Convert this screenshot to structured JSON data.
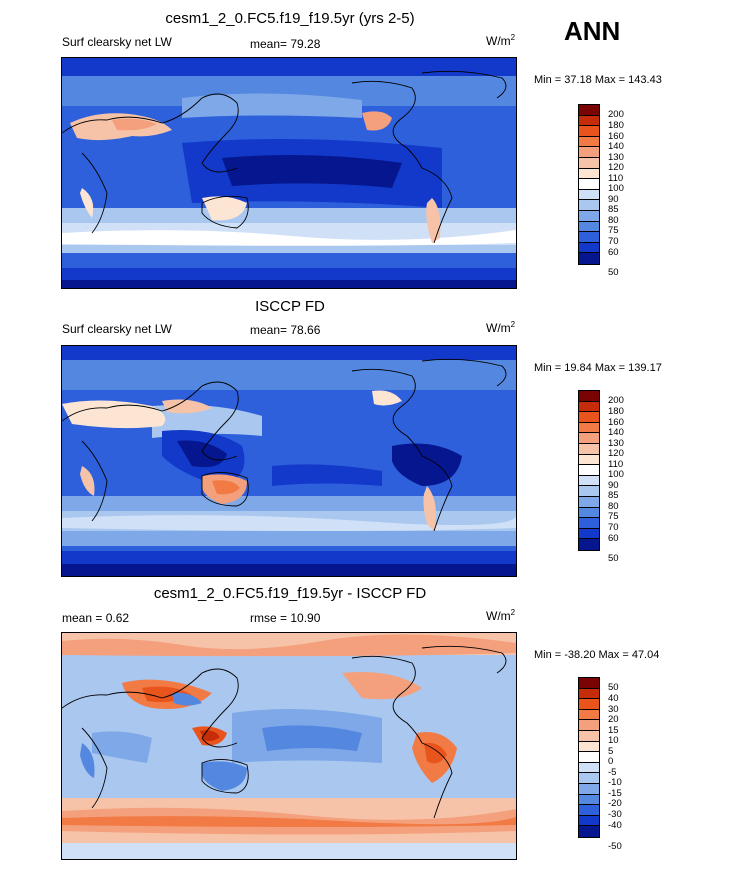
{
  "season": "ANN",
  "panels": [
    {
      "title": "cesm1_2_0.FC5.f19_f19.5yr (yrs 2-5)",
      "left_label": "Surf clearsky net LW",
      "center_label": "mean=  79.28",
      "units_base": "W/m",
      "units_exp": "2",
      "minmax": "Min =  37.18 Max = 143.43",
      "levels": [
        "200",
        "180",
        "160",
        "140",
        "130",
        "120",
        "110",
        "100",
        "90",
        "85",
        "80",
        "75",
        "70",
        "60",
        "50"
      ],
      "colors": [
        "#7a0403",
        "#c52d0a",
        "#e9541c",
        "#f27a45",
        "#f4a07c",
        "#f6c3a8",
        "#fde5d3",
        "#ffffff",
        "#cfe0f7",
        "#a9c7ef",
        "#7ea8e7",
        "#5487e0",
        "#2e60dc",
        "#1239c9",
        "#05168f"
      ]
    },
    {
      "title": "ISCCP FD",
      "left_label": "Surf clearsky net LW",
      "center_label": "mean=  78.66",
      "units_base": "W/m",
      "units_exp": "2",
      "minmax": "Min =  19.84 Max = 139.17",
      "levels": [
        "200",
        "180",
        "160",
        "140",
        "130",
        "120",
        "110",
        "100",
        "90",
        "85",
        "80",
        "75",
        "70",
        "60",
        "50"
      ],
      "colors": [
        "#7a0403",
        "#c52d0a",
        "#e9541c",
        "#f27a45",
        "#f4a07c",
        "#f6c3a8",
        "#fde5d3",
        "#ffffff",
        "#cfe0f7",
        "#a9c7ef",
        "#7ea8e7",
        "#5487e0",
        "#2e60dc",
        "#1239c9",
        "#05168f"
      ]
    },
    {
      "title": "cesm1_2_0.FC5.f19_f19.5yr - ISCCP FD",
      "left_label": "mean =   0.62",
      "center_label": "rmse =  10.90",
      "units_base": "W/m",
      "units_exp": "2",
      "minmax": "Min = -38.20 Max =  47.04",
      "levels": [
        "50",
        "40",
        "30",
        "20",
        "15",
        "10",
        "5",
        "0",
        "-5",
        "-10",
        "-15",
        "-20",
        "-30",
        "-40",
        "-50"
      ],
      "colors": [
        "#7a0403",
        "#c52d0a",
        "#e9541c",
        "#f27a45",
        "#f4a07c",
        "#f6c3a8",
        "#fde5d3",
        "#ffffff",
        "#cfe0f7",
        "#a9c7ef",
        "#7ea8e7",
        "#5487e0",
        "#2e60dc",
        "#1239c9",
        "#05168f"
      ]
    }
  ]
}
